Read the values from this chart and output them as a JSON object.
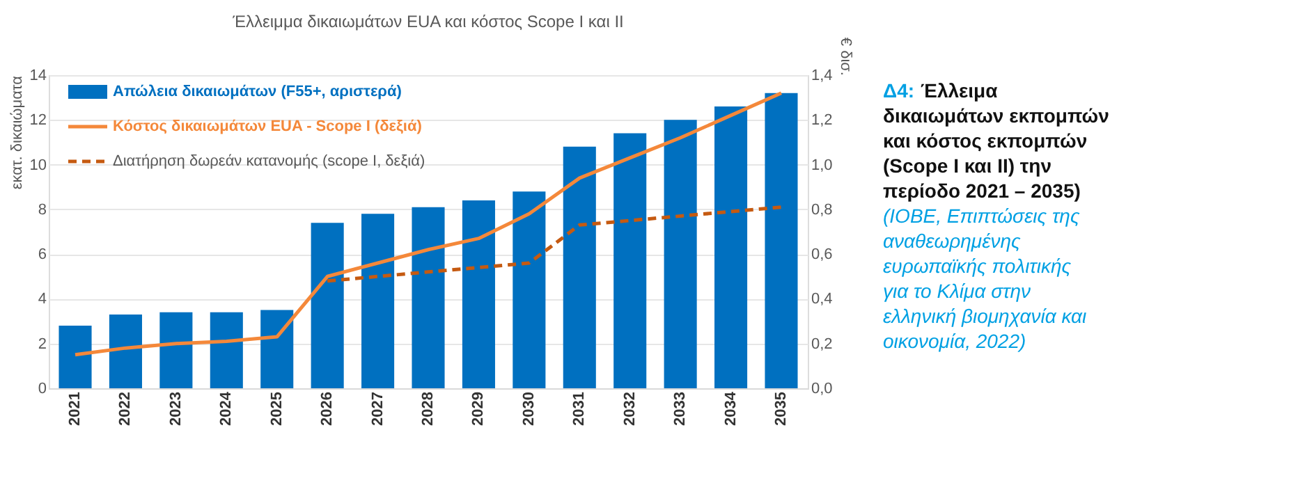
{
  "chart_data": {
    "type": "bar",
    "title": "Έλλειμμα δικαιωμάτων EUA και κόστος Scope I και II",
    "ylabel": "εκατ. δικαιώματα",
    "y2label": "€ δισ.",
    "categories": [
      "2021",
      "2022",
      "2023",
      "2024",
      "2025",
      "2026",
      "2027",
      "2028",
      "2029",
      "2030",
      "2031",
      "2032",
      "2033",
      "2034",
      "2035"
    ],
    "series": [
      {
        "name": "Απώλεια δικαιωμάτων (F55+, αριστερά)",
        "color": "#0070c0",
        "values": [
          2.8,
          3.3,
          3.4,
          3.4,
          3.5,
          7.4,
          7.8,
          8.1,
          8.4,
          8.8,
          10.8,
          11.4,
          12.0,
          12.6,
          13.2
        ]
      },
      {
        "name": "Κόστος δικαιωμάτων EUA - Scope I (δεξιά)",
        "type": "line",
        "axis": "y2",
        "line_style": "solid",
        "color": "#f4883a",
        "values": [
          0.15,
          0.18,
          0.2,
          0.21,
          0.23,
          0.5,
          0.56,
          0.62,
          0.67,
          0.78,
          0.94,
          1.03,
          1.12,
          1.22,
          1.32
        ]
      },
      {
        "name": "Διατήρηση δωρεάν κατανομής (scope I, δεξιά)",
        "type": "line",
        "axis": "y2",
        "line_style": "dashed",
        "color": "#c55a11",
        "values": [
          null,
          null,
          null,
          null,
          null,
          0.48,
          0.5,
          0.52,
          0.54,
          0.56,
          0.73,
          0.75,
          0.77,
          0.79,
          0.81
        ]
      }
    ],
    "ylim": [
      0,
      14
    ],
    "yticks": [
      0,
      2,
      4,
      6,
      8,
      10,
      12,
      14
    ],
    "y2lim": [
      0,
      1.4
    ],
    "y2ticks": [
      {
        "value": 0,
        "label": "0,0"
      },
      {
        "value": 0.2,
        "label": "0,2"
      },
      {
        "value": 0.4,
        "label": "0,4"
      },
      {
        "value": 0.6,
        "label": "0,6"
      },
      {
        "value": 0.8,
        "label": "0,8"
      },
      {
        "value": 1.0,
        "label": "1,0"
      },
      {
        "value": 1.2,
        "label": "1,2"
      },
      {
        "value": 1.4,
        "label": "1,4"
      }
    ],
    "grid": "y",
    "legend": "top left",
    "annotations": [
      "Δ4:",
      "Έλλειμα δικαιωμάτων εκπομπών και κόστος εκπομπών (Scope I και II) την περίοδο 2021 – 2035)",
      "(ΙΟΒΕ, Επιπτώσεις της αναθεωρημένης ευρωπαϊκής πολιτικής για το Κλίμα στην ελληνική βιομηχανία και οικονομία, 2022)"
    ]
  }
}
